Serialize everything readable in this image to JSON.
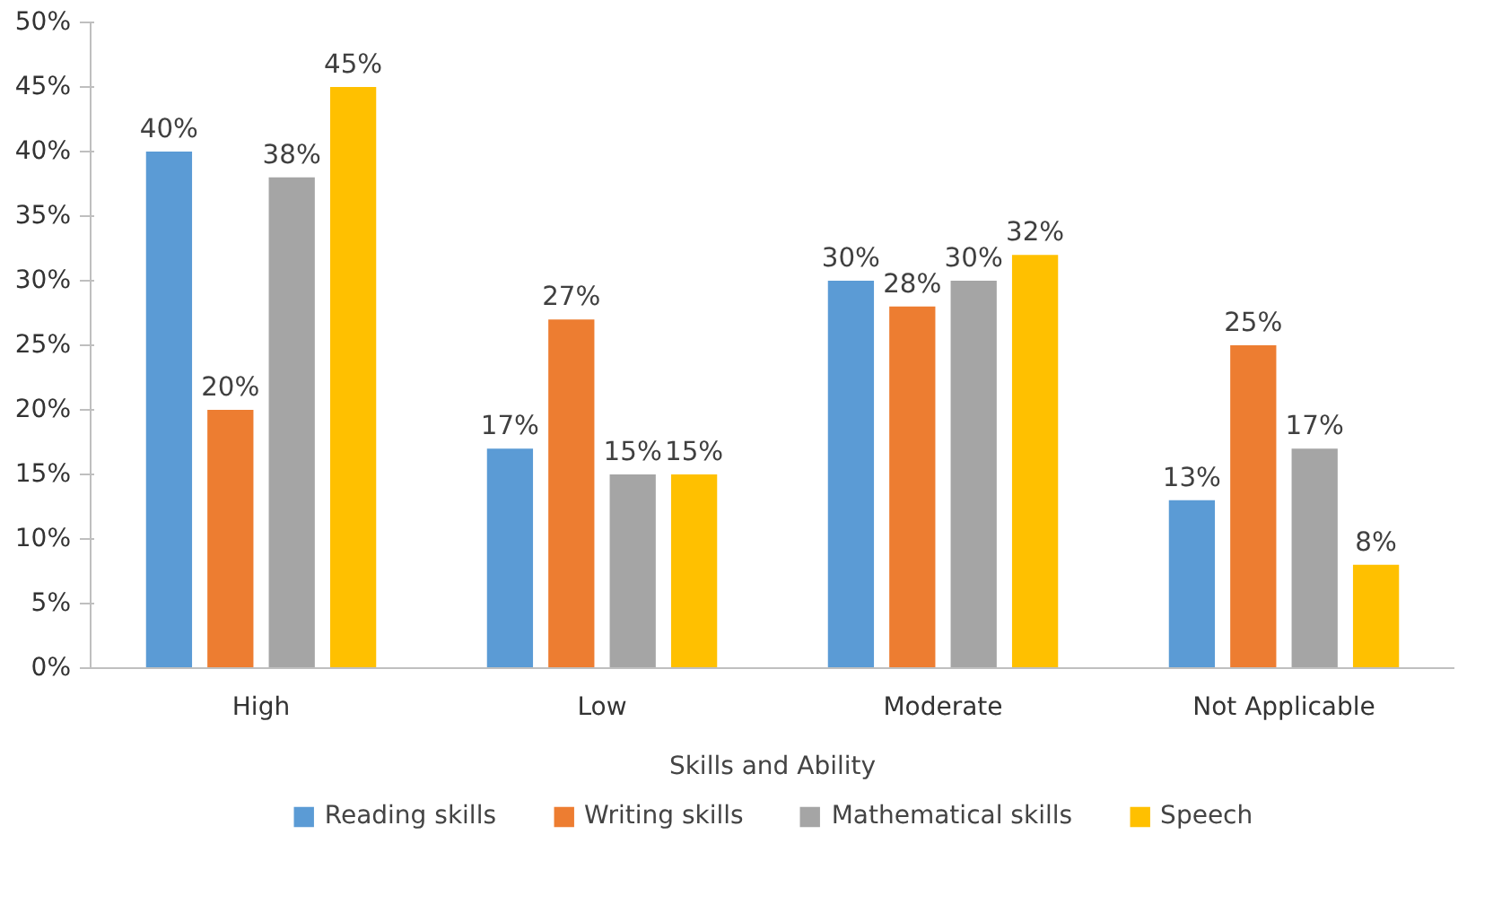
{
  "chart_data": {
    "type": "bar",
    "xlabel": "Skills and Ability",
    "categories": [
      "High",
      "Low",
      "Moderate",
      "Not Applicable"
    ],
    "series": [
      {
        "name": "Reading skills",
        "color": "#5b9bd5",
        "values": [
          40,
          17,
          30,
          13
        ],
        "value_labels": [
          "40%",
          "17%",
          "30%",
          "13%"
        ]
      },
      {
        "name": "Writing skills",
        "color": "#ed7d31",
        "values": [
          20,
          27,
          28,
          25
        ],
        "value_labels": [
          "20%",
          "27%",
          "28%",
          "25%"
        ]
      },
      {
        "name": "Mathematical skills",
        "color": "#a5a5a5",
        "values": [
          38,
          15,
          30,
          17
        ],
        "value_labels": [
          "38%",
          "15%",
          "30%",
          "17%"
        ]
      },
      {
        "name": "Speech",
        "color": "#ffc000",
        "values": [
          45,
          15,
          32,
          8
        ],
        "value_labels": [
          "45%",
          "15%",
          "32%",
          "8%"
        ]
      }
    ],
    "ylim": [
      0,
      50
    ],
    "yticks": [
      {
        "value": 0,
        "label": "0%"
      },
      {
        "value": 5,
        "label": "5%"
      },
      {
        "value": 10,
        "label": "10%"
      },
      {
        "value": 15,
        "label": "15%"
      },
      {
        "value": 20,
        "label": "20%"
      },
      {
        "value": 25,
        "label": "25%"
      },
      {
        "value": 30,
        "label": "30%"
      },
      {
        "value": 35,
        "label": "35%"
      },
      {
        "value": 40,
        "label": "40%"
      },
      {
        "value": 45,
        "label": "45%"
      },
      {
        "value": 50,
        "label": "50%"
      }
    ],
    "grid": false,
    "legend": "bottom"
  }
}
